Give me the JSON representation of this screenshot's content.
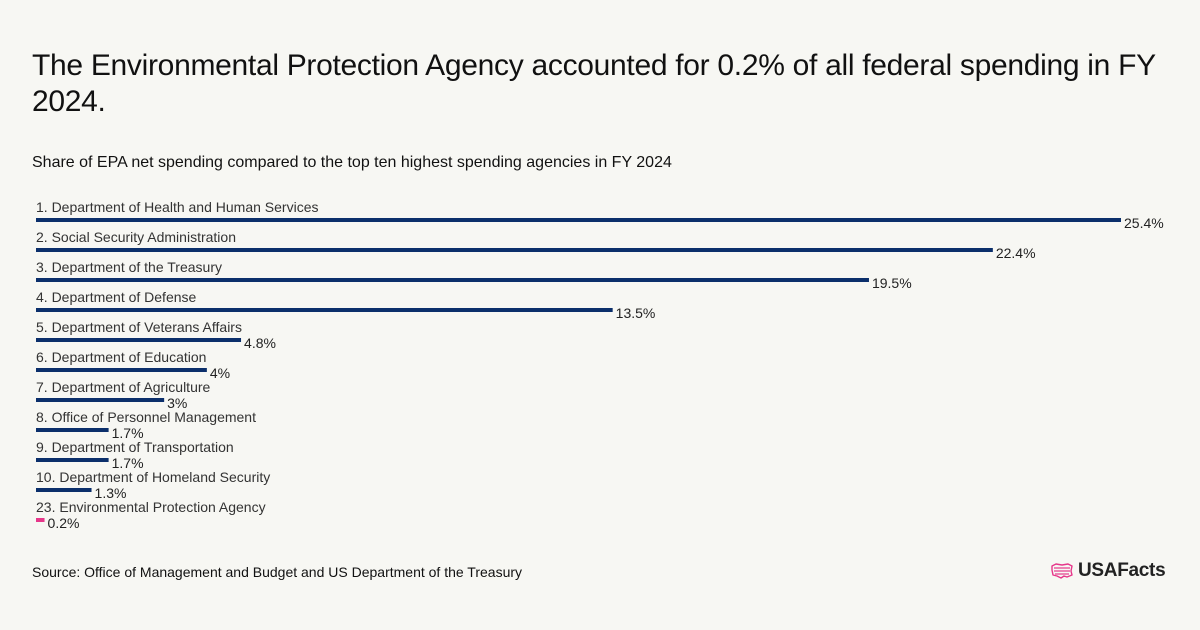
{
  "title": "The Environmental Protection Agency accounted for 0.2% of all federal spending in FY 2024.",
  "subtitle": "Share of EPA net spending compared to the top ten highest spending agencies in FY 2024",
  "source": "Source: Office of Management and Budget and US Department of the Treasury",
  "brand": {
    "name": "USAFacts",
    "icon": "us-map-flag-icon"
  },
  "colors": {
    "primary_bar": "#0b2f6b",
    "highlight_bar": "#e6378a",
    "background": "#f7f7f3"
  },
  "chart_data": {
    "type": "bar",
    "orientation": "horizontal",
    "title": "The Environmental Protection Agency accounted for 0.2% of all federal spending in FY 2024.",
    "subtitle": "Share of EPA net spending compared to the top ten highest spending agencies in FY 2024",
    "xlabel": "",
    "ylabel": "",
    "xlim": [
      0,
      25.4
    ],
    "grid": false,
    "categories": [
      "1. Department of Health and Human Services",
      "2. Social Security Administration",
      "3. Department of the Treasury",
      "4. Department of Defense",
      "5. Department of Veterans Affairs",
      "6. Department of Education",
      "7. Department of Agriculture",
      "8. Office of Personnel Management",
      "9. Department of Transportation",
      "10. Department of Homeland Security",
      "23. Environmental Protection Agency"
    ],
    "values": [
      25.4,
      22.4,
      19.5,
      13.5,
      4.8,
      4,
      3,
      1.7,
      1.7,
      1.3,
      0.2
    ],
    "value_labels": [
      "25.4%",
      "22.4%",
      "19.5%",
      "13.5%",
      "4.8%",
      "4%",
      "3%",
      "1.7%",
      "1.7%",
      "1.3%",
      "0.2%"
    ],
    "highlight_index": 10
  }
}
